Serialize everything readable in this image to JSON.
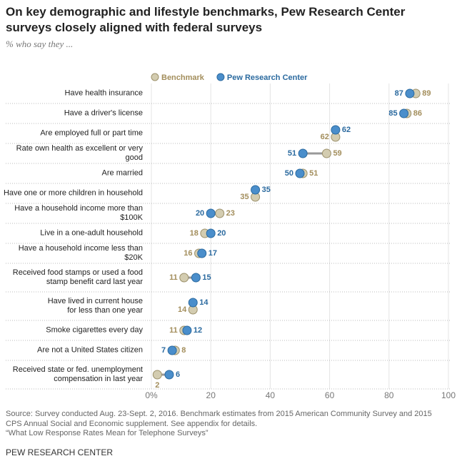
{
  "chart_data": {
    "type": "dot",
    "title": "On key demographic and lifestyle benchmarks, Pew Research Center surveys closely aligned with federal surveys",
    "subtitle": "% who say they ...",
    "categories": [
      "Have health insurance",
      "Have a driver's license",
      "Are employed full or part time",
      "Rate own health as excellent or very good",
      "Are married",
      "Have one or more children in household",
      "Have a household income more than $100K",
      "Live in a one-adult household",
      "Have a household income less than $20K",
      "Received food stamps or used a food\nstamp benefit card last year",
      "Have lived in current house\nfor less than one year",
      "Smoke cigarettes every day",
      "Are not a United States citizen",
      "Received state or fed. unemployment\ncompensation in last year"
    ],
    "series": [
      {
        "name": "Benchmark",
        "color": "#d3ccb0",
        "label_color": "#a38e5c",
        "values": [
          89,
          86,
          62,
          59,
          51,
          35,
          23,
          18,
          16,
          11,
          14,
          11,
          8,
          2
        ]
      },
      {
        "name": "Pew Research Center",
        "color": "#4a8ecb",
        "label_color": "#2b6a9f",
        "values": [
          87,
          85,
          62,
          51,
          50,
          35,
          20,
          20,
          17,
          15,
          14,
          12,
          7,
          6
        ]
      }
    ],
    "xlim": [
      0,
      100
    ],
    "xticks": [
      {
        "value": 0,
        "label": "0%"
      },
      20,
      40,
      60,
      80,
      100
    ],
    "source": "Source: Survey conducted Aug. 23-Sept. 2, 2016. Benchmark estimates from 2015 American Community Survey and 2015 CPS Annual Social and Economic supplement. See appendix for details.\n“What Low Response Rates Mean for Telephone Surveys”",
    "credit": "PEW RESEARCH CENTER"
  }
}
